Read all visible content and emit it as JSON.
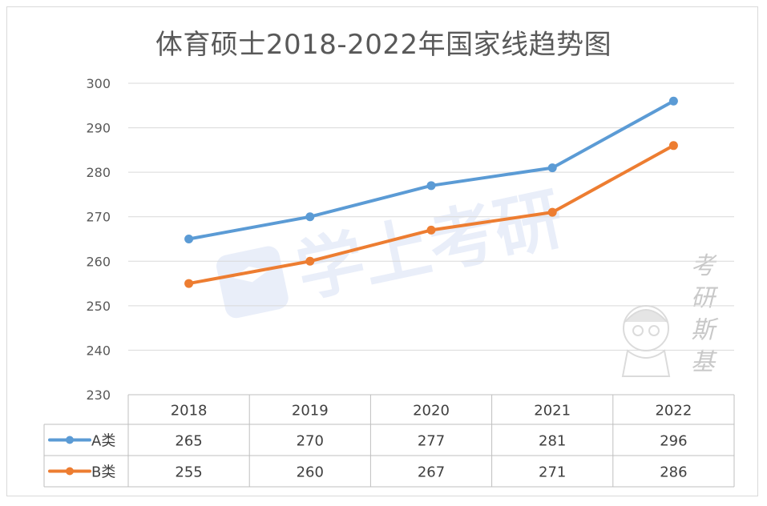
{
  "chart_data": {
    "type": "line",
    "title": "体育硕士2018-2022年国家线趋势图",
    "categories": [
      "2018",
      "2019",
      "2020",
      "2021",
      "2022"
    ],
    "series": [
      {
        "name": "A类",
        "values": [
          265,
          270,
          277,
          281,
          296
        ],
        "color": "#5b9bd5"
      },
      {
        "name": "B类",
        "values": [
          255,
          260,
          267,
          271,
          286
        ],
        "color": "#ed7d31"
      }
    ],
    "ylim": [
      230,
      300
    ],
    "yticks": [
      300,
      290,
      280,
      270,
      260,
      250,
      240,
      230
    ],
    "grid": true,
    "legend": "data-table"
  },
  "watermarks": {
    "center_logo": "学上考研",
    "side_text": [
      "考",
      "研",
      "斯",
      "基"
    ]
  }
}
